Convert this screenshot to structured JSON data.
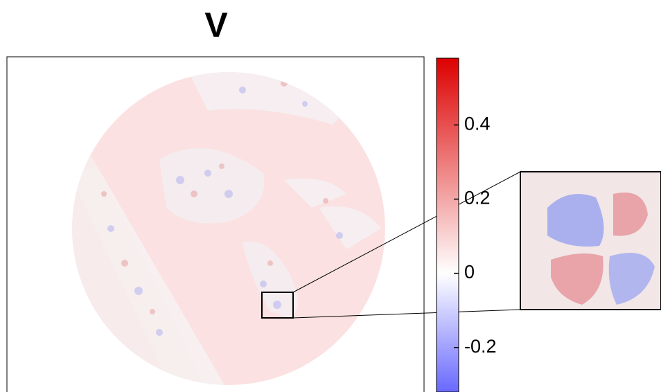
{
  "chart_data": {
    "type": "heatmap",
    "title": "V",
    "colorbar": {
      "clim": [
        -0.32,
        0.58
      ],
      "ticks": [
        0.4,
        0.2,
        0,
        -0.2
      ],
      "colors": [
        "#6868ff",
        "#ffffff",
        "#dd0000"
      ]
    }
  }
}
